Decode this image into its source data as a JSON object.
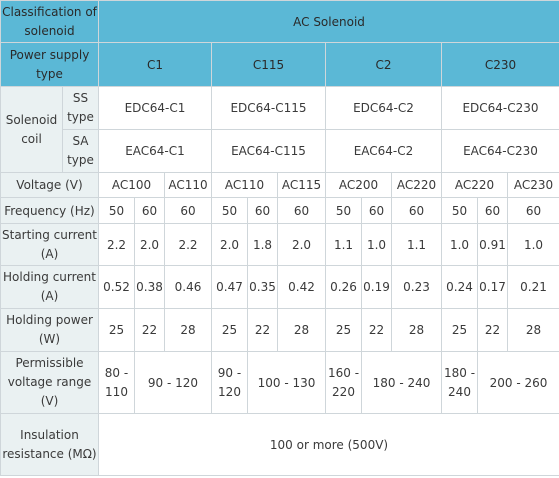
{
  "header": {
    "classification_label": "Classification of solenoid",
    "ac_solenoid": "AC Solenoid",
    "power_supply_label": "Power supply type",
    "power_types": [
      "C1",
      "C115",
      "C2",
      "C230"
    ]
  },
  "solenoid_coil": {
    "label": "Solenoid coil",
    "ss_label": "SS type",
    "sa_label": "SA type",
    "ss_models": [
      "EDC64-C1",
      "EDC64-C115",
      "EDC64-C2",
      "EDC64-C230"
    ],
    "sa_models": [
      "EAC64-C1",
      "EAC64-C115",
      "EAC64-C2",
      "EAC64-C230"
    ]
  },
  "voltage": {
    "label": "Voltage (V)",
    "values": [
      "AC100",
      "AC110",
      "AC110",
      "AC115",
      "AC200",
      "AC220",
      "AC220",
      "AC230"
    ]
  },
  "frequency": {
    "label": "Frequency (Hz)",
    "values": [
      "50",
      "60",
      "60",
      "50",
      "60",
      "60",
      "50",
      "60",
      "60",
      "50",
      "60",
      "60"
    ]
  },
  "starting_current": {
    "label": "Starting current (A)",
    "values": [
      "2.2",
      "2.0",
      "2.2",
      "2.0",
      "1.8",
      "2.0",
      "1.1",
      "1.0",
      "1.1",
      "1.0",
      "0.91",
      "1.0"
    ]
  },
  "holding_current": {
    "label": "Holding current (A)",
    "values": [
      "0.52",
      "0.38",
      "0.46",
      "0.47",
      "0.35",
      "0.42",
      "0.26",
      "0.19",
      "0.23",
      "0.24",
      "0.17",
      "0.21"
    ]
  },
  "holding_power": {
    "label": "Holding power (W)",
    "values": [
      "25",
      "22",
      "28",
      "25",
      "22",
      "28",
      "25",
      "22",
      "28",
      "25",
      "22",
      "28"
    ]
  },
  "permissible_voltage": {
    "label": "Permissible voltage range (V)",
    "values": [
      "80 - 110",
      "90 - 120",
      "90 - 120",
      "100 - 130",
      "160 - 220",
      "180 - 240",
      "180 - 240",
      "200 - 260"
    ]
  },
  "insulation": {
    "label": "Insulation resistance (MΩ)",
    "value": "100 or more (500V)"
  }
}
